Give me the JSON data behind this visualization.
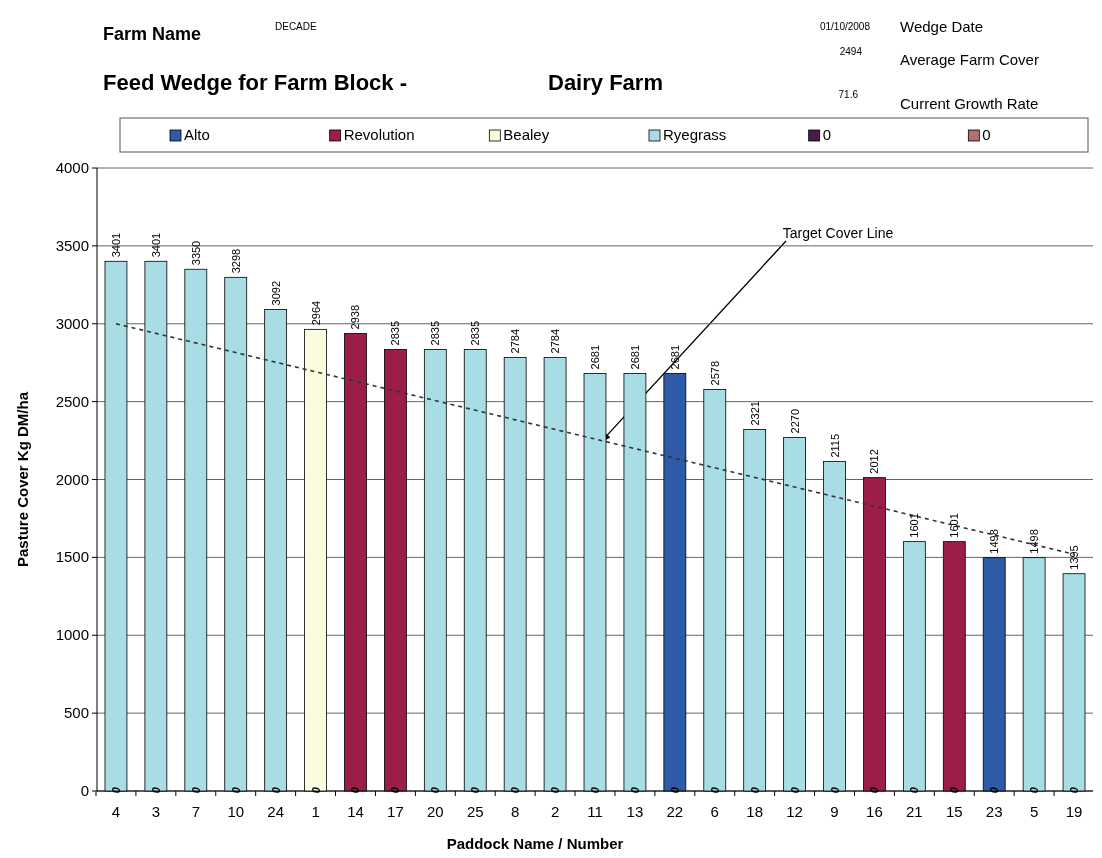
{
  "chart_data": {
    "type": "bar",
    "title": "Feed Wedge for Farm Block -",
    "subtitle": "Dairy Farm",
    "xlabel": "Paddock Name / Number",
    "ylabel": "Pasture Cover Kg DM/ha",
    "categories": [
      "4",
      "3",
      "7",
      "10",
      "24",
      "1",
      "14",
      "17",
      "20",
      "25",
      "8",
      "2",
      "11",
      "13",
      "22",
      "6",
      "18",
      "12",
      "9",
      "16",
      "21",
      "15",
      "23",
      "5",
      "19"
    ],
    "grid": "y",
    "legend": "top",
    "ylim": [
      0,
      4000
    ],
    "yticks": [
      0,
      500,
      1000,
      1500,
      2000,
      2500,
      3000,
      3500,
      4000
    ],
    "series": [
      {
        "name": "0",
        "color": "#4a1a48",
        "values": [
          0,
          0,
          0,
          0,
          0,
          0,
          0,
          0,
          0,
          0,
          0,
          0,
          0,
          0,
          0,
          0,
          0,
          0,
          0,
          0,
          0,
          0,
          0,
          0,
          0
        ],
        "value_labels": [
          "0",
          "0",
          "0",
          "0",
          "0",
          "0",
          "0",
          "0",
          "0",
          "0",
          "0",
          "0",
          "0",
          "0",
          "0",
          "0",
          "0",
          "0",
          "0",
          "0",
          "0",
          "0",
          "0",
          "0",
          "0"
        ]
      },
      {
        "name": "0",
        "color": "#b07070",
        "values": [
          null,
          null,
          null,
          null,
          null,
          null,
          null,
          null,
          null,
          null,
          null,
          null,
          null,
          null,
          null,
          null,
          null,
          null,
          null,
          null,
          null,
          null,
          null,
          null,
          null
        ]
      },
      {
        "name": "Alto",
        "color": "#2e5aa8",
        "values": [
          null,
          null,
          null,
          null,
          null,
          null,
          null,
          null,
          null,
          null,
          null,
          null,
          null,
          null,
          2681,
          null,
          null,
          null,
          null,
          null,
          null,
          null,
          1498,
          null,
          null
        ],
        "value_labels": [
          null,
          null,
          null,
          null,
          null,
          null,
          null,
          null,
          null,
          null,
          null,
          null,
          null,
          null,
          "2681",
          null,
          null,
          null,
          null,
          null,
          null,
          null,
          "1498",
          null,
          null
        ]
      },
      {
        "name": "Revolution",
        "color": "#9b1d4a",
        "values": [
          null,
          null,
          null,
          null,
          null,
          null,
          2938,
          2835,
          null,
          null,
          null,
          null,
          null,
          null,
          null,
          null,
          null,
          null,
          null,
          2012,
          null,
          1601,
          null,
          null,
          null
        ],
        "value_labels": [
          null,
          null,
          null,
          null,
          null,
          null,
          "2938",
          "2835",
          null,
          null,
          null,
          null,
          null,
          null,
          null,
          null,
          null,
          null,
          null,
          "2012",
          null,
          "1601",
          null,
          null,
          null
        ]
      },
      {
        "name": "Bealey",
        "color": "#fbfbe0",
        "values": [
          null,
          null,
          null,
          null,
          null,
          2964,
          null,
          null,
          null,
          null,
          null,
          null,
          null,
          null,
          null,
          null,
          null,
          null,
          null,
          null,
          null,
          null,
          null,
          null,
          null
        ],
        "value_labels": [
          null,
          null,
          null,
          null,
          null,
          "2964",
          null,
          null,
          null,
          null,
          null,
          null,
          null,
          null,
          null,
          null,
          null,
          null,
          null,
          null,
          null,
          null,
          null,
          null,
          null
        ]
      },
      {
        "name": "Ryegrass",
        "color": "#a8dde6",
        "values": [
          3401,
          3401,
          3350,
          3298,
          3092,
          null,
          null,
          null,
          2835,
          2835,
          2784,
          2784,
          2681,
          2681,
          null,
          2578,
          2321,
          2270,
          2115,
          null,
          1601,
          null,
          null,
          1498,
          1395
        ],
        "value_labels": [
          "3401",
          "3401",
          "3350",
          "3298",
          "3092",
          null,
          null,
          null,
          "2835",
          "2835",
          "2784",
          "2784",
          "2681",
          "2681",
          null,
          "2578",
          "2321",
          "2270",
          "2115",
          null,
          "1601",
          null,
          null,
          "1498",
          "1395"
        ]
      },
      {
        "type": "line",
        "x": [
          "4",
          "19"
        ],
        "values": [
          3000,
          1520
        ],
        "color": "#333333",
        "line_style": "dashed"
      }
    ],
    "annotations": [
      "Farm Name",
      "DECADE",
      "01/10/2008",
      "Wedge Date",
      "2494",
      "Average Farm Cover",
      "71.6",
      "Current Growth Rate",
      "Target Cover Line"
    ]
  }
}
